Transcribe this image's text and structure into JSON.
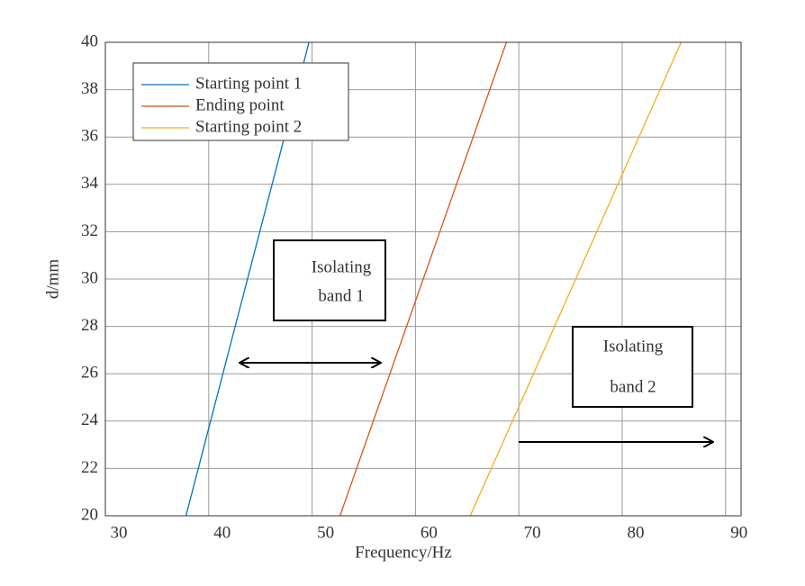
{
  "chart_data": {
    "type": "line",
    "xlabel": "Frequency/Hz",
    "ylabel": "d/mm",
    "xlim": [
      30,
      91.5
    ],
    "xticks": [
      30,
      40,
      50,
      60,
      70,
      80,
      90
    ],
    "ylim": [
      20,
      40
    ],
    "yticks": [
      20,
      22,
      24,
      26,
      28,
      30,
      32,
      34,
      36,
      38,
      40
    ],
    "grid": true,
    "legend": "upper left",
    "series": [
      {
        "name": "Starting point 1",
        "color": "#0072bd",
        "x": [
          37.8,
          49.7
        ],
        "y": [
          20,
          40
        ]
      },
      {
        "name": "Ending point",
        "color": "#d95319",
        "x": [
          52.7,
          68.8
        ],
        "y": [
          20,
          40
        ]
      },
      {
        "name": "Starting point 2",
        "color": "#edb120",
        "x": [
          65.3,
          85.7
        ],
        "y": [
          20,
          40
        ]
      }
    ],
    "annotations": [
      {
        "lines": [
          "Isolating",
          "band 1"
        ]
      },
      {
        "lines": [
          "Isolating",
          "band 2"
        ]
      }
    ]
  }
}
